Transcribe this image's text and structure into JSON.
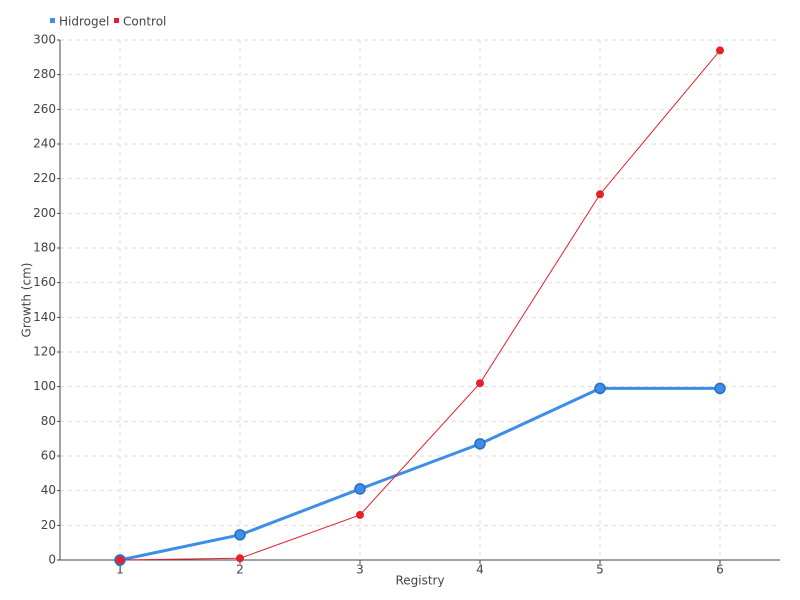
{
  "chart_data": {
    "type": "line",
    "x_label": "Registry",
    "y_label": "Growth (cm)",
    "categories": [
      "1",
      "2",
      "3",
      "4",
      "5",
      "6"
    ],
    "series": [
      {
        "name": "Hidrogel",
        "color": "#3d8ee8",
        "values": [
          0,
          14.5,
          41,
          67,
          99,
          99
        ]
      },
      {
        "name": "Control",
        "color": "#e8202a",
        "values": [
          0,
          1,
          26,
          102,
          211,
          294
        ]
      }
    ],
    "ylim": [
      0,
      300
    ],
    "yticks": [
      0,
      20,
      40,
      60,
      80,
      100,
      120,
      140,
      160,
      180,
      200,
      220,
      240,
      260,
      280,
      300
    ],
    "grid": true,
    "legend": "top-left"
  }
}
